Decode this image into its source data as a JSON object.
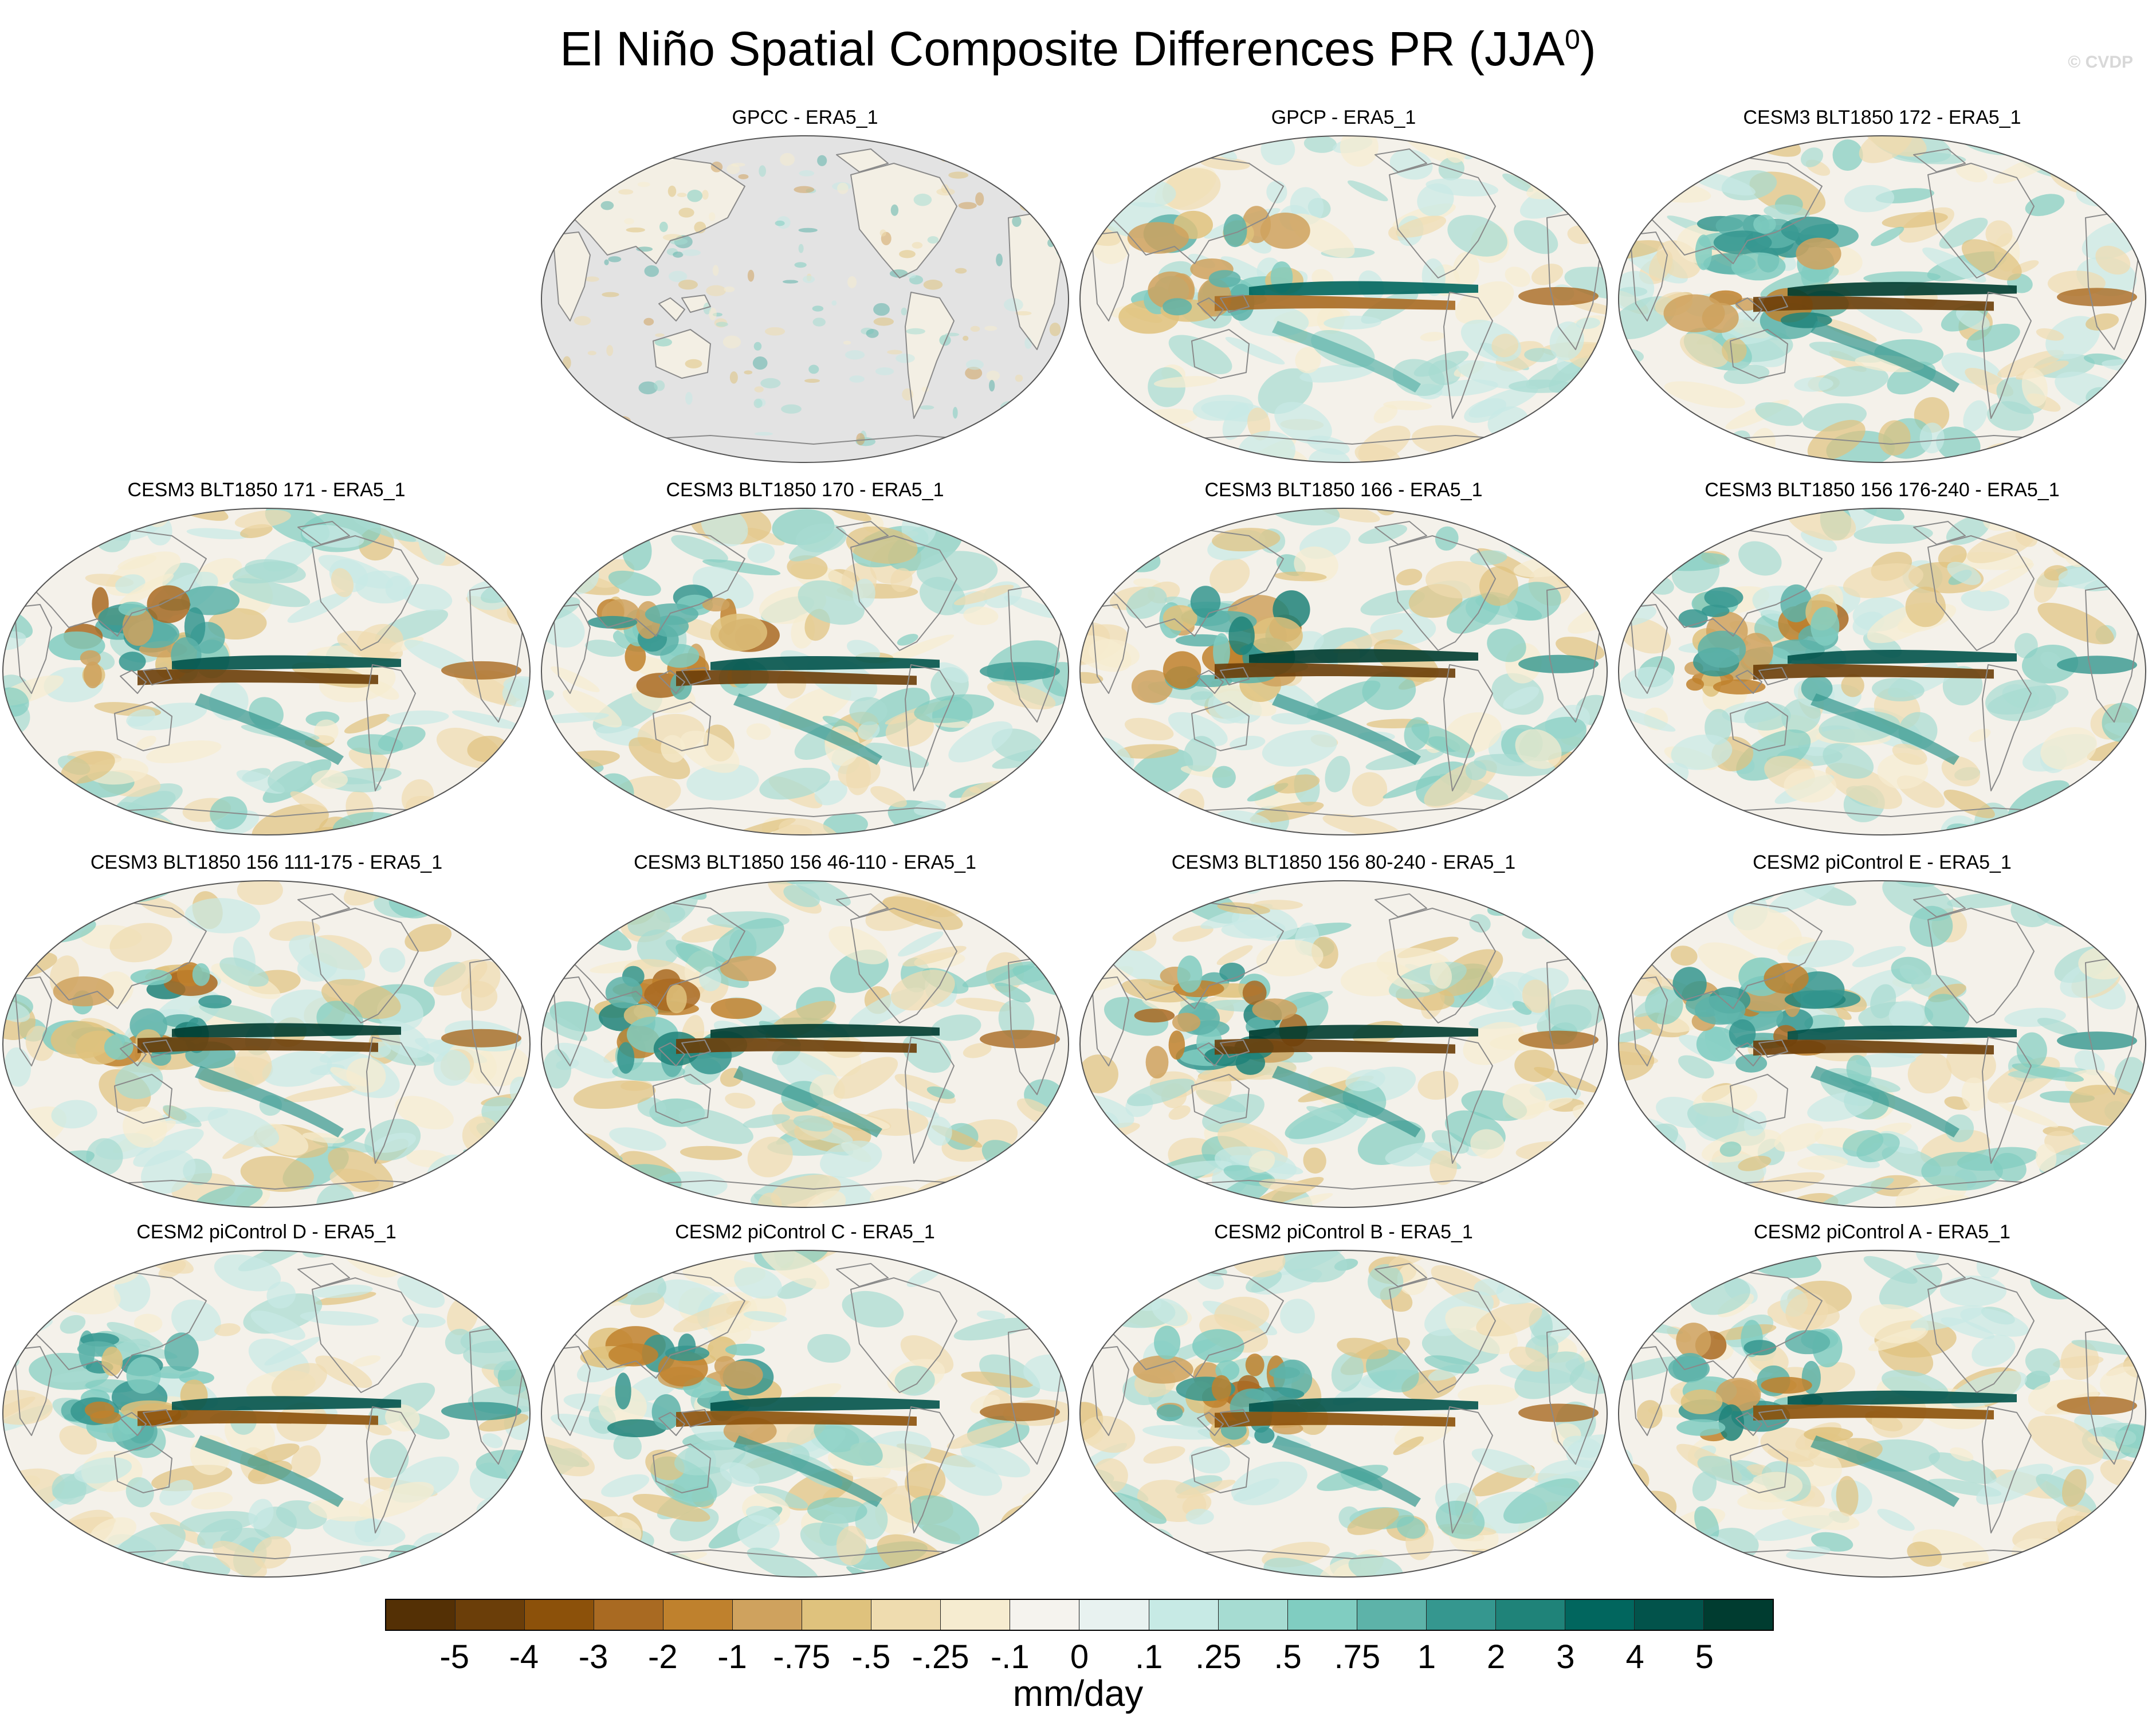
{
  "figure": {
    "title_main": "El Niño Spatial Composite Differences PR (JJA",
    "title_superscript": "0",
    "title_close": ")",
    "credit": "© CVDP"
  },
  "colors": {
    "land_mask": "#e3e3e3",
    "coastline": "#8a8a8a",
    "dry_strong": "#8c510a",
    "wet_strong": "#01665e"
  },
  "panels": [
    {
      "title": "GPCC - ERA5_1",
      "land_only": true,
      "strength": 0.35
    },
    {
      "title": "GPCP - ERA5_1",
      "land_only": false,
      "strength": 0.5
    },
    {
      "title": "CESM3 BLT1850 172 - ERA5_1",
      "land_only": false,
      "strength": 0.9
    },
    {
      "title": "CESM3 BLT1850 171 - ERA5_1",
      "land_only": false,
      "strength": 0.85
    },
    {
      "title": "CESM3 BLT1850 170 - ERA5_1",
      "land_only": false,
      "strength": 0.85
    },
    {
      "title": "CESM3 BLT1850 166 - ERA5_1",
      "land_only": false,
      "strength": 0.9
    },
    {
      "title": "CESM3 BLT1850 156 176-240 - ERA5_1",
      "land_only": false,
      "strength": 0.85
    },
    {
      "title": "CESM3 BLT1850 156 111-175 - ERA5_1",
      "land_only": false,
      "strength": 0.9
    },
    {
      "title": "CESM3 BLT1850 156 46-110 - ERA5_1",
      "land_only": false,
      "strength": 0.9
    },
    {
      "title": "CESM3 BLT1850 156 80-240 - ERA5_1",
      "land_only": false,
      "strength": 0.9
    },
    {
      "title": "CESM2 piControl E - ERA5_1",
      "land_only": false,
      "strength": 0.85
    },
    {
      "title": "CESM2 piControl D - ERA5_1",
      "land_only": false,
      "strength": 0.8
    },
    {
      "title": "CESM2 piControl C - ERA5_1",
      "land_only": false,
      "strength": 0.8
    },
    {
      "title": "CESM2 piControl B - ERA5_1",
      "land_only": false,
      "strength": 0.8
    },
    {
      "title": "CESM2 piControl A - ERA5_1",
      "land_only": false,
      "strength": 0.8
    }
  ],
  "colorbar": {
    "colors": [
      "#543005",
      "#6b3e09",
      "#8c510a",
      "#a96a22",
      "#bf812d",
      "#cfa25e",
      "#dfc27d",
      "#efdcaf",
      "#f6ecd0",
      "#f5f3ee",
      "#e8f2f0",
      "#c7eae5",
      "#a6dcd2",
      "#80cdc1",
      "#5db3a9",
      "#35978f",
      "#1f8379",
      "#01665e",
      "#02534b",
      "#003c30"
    ],
    "labels": [
      "-5",
      "-4",
      "-3",
      "-2",
      "-1",
      "-.75",
      "-.5",
      "-.25",
      "-.1",
      "0",
      ".1",
      ".25",
      ".5",
      ".75",
      "1",
      "2",
      "3",
      "4",
      "5"
    ],
    "units": "mm/day"
  }
}
